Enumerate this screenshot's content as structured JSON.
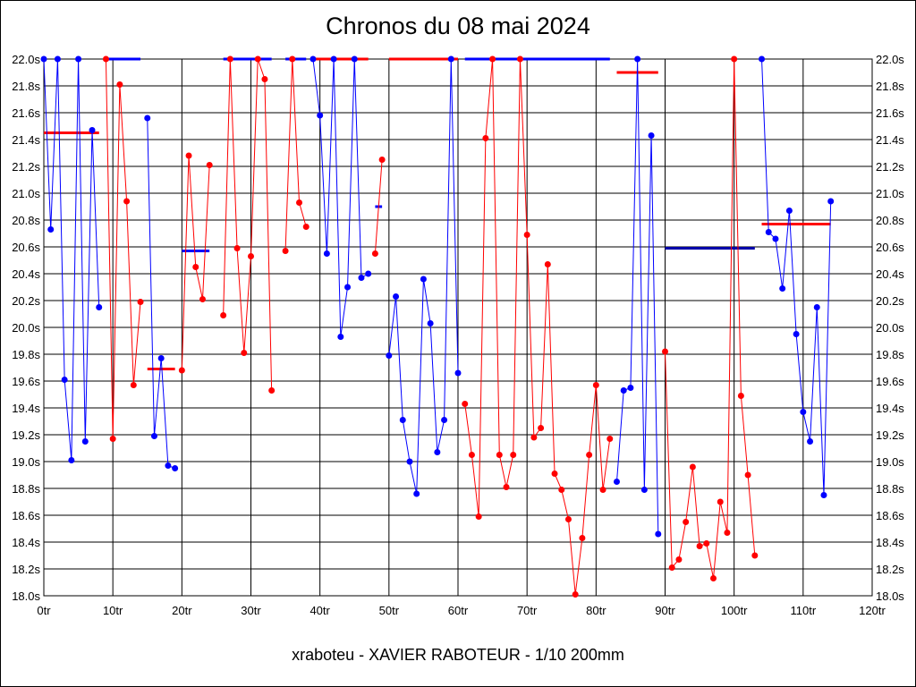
{
  "chart_data": {
    "type": "line",
    "title": "Chronos du 08 mai 2024",
    "subtitle": "xraboteu - XAVIER RABOTEUR - 1/10 200mm",
    "xlabel": "",
    "ylabel": "",
    "xlim": [
      0,
      120
    ],
    "ylim": [
      18.0,
      22.0
    ],
    "grid": true,
    "x_ticks": [
      "0tr",
      "10tr",
      "20tr",
      "30tr",
      "40tr",
      "50tr",
      "60tr",
      "70tr",
      "80tr",
      "90tr",
      "100tr",
      "110tr",
      "120tr"
    ],
    "x_tick_values": [
      0,
      10,
      20,
      30,
      40,
      50,
      60,
      70,
      80,
      90,
      100,
      110,
      120
    ],
    "y_ticks": [
      "18.0s",
      "18.2s",
      "18.4s",
      "18.6s",
      "18.8s",
      "19.0s",
      "19.2s",
      "19.4s",
      "19.6s",
      "19.8s",
      "20.0s",
      "20.2s",
      "20.4s",
      "20.6s",
      "20.8s",
      "21.0s",
      "21.2s",
      "21.4s",
      "21.6s",
      "21.8s",
      "22.0s"
    ],
    "y_tick_values": [
      18.0,
      18.2,
      18.4,
      18.6,
      18.8,
      19.0,
      19.2,
      19.4,
      19.6,
      19.8,
      20.0,
      20.2,
      20.4,
      20.6,
      20.8,
      21.0,
      21.2,
      21.4,
      21.6,
      21.8,
      22.0
    ],
    "colors": {
      "blue": "#0000ff",
      "red": "#ff0000",
      "navy": "#0000aa",
      "grid": "#000000"
    },
    "series": [
      {
        "name": "segment-1",
        "color": "blue",
        "start": 0,
        "values": [
          22.0,
          20.73,
          22.0,
          19.61,
          19.01,
          22.0,
          19.15,
          21.47,
          20.15
        ]
      },
      {
        "name": "segment-2",
        "color": "red",
        "start": 9,
        "values": [
          22.0,
          19.17,
          21.81,
          20.94,
          19.57,
          20.19
        ]
      },
      {
        "name": "segment-3",
        "color": "blue",
        "start": 15,
        "values": [
          21.56,
          19.19,
          19.77,
          18.97,
          18.95
        ]
      },
      {
        "name": "segment-4",
        "color": "red",
        "start": 20,
        "values": [
          19.68,
          21.28,
          20.45,
          20.21,
          21.21
        ]
      },
      {
        "name": "segment-5",
        "color": "red",
        "start": 26,
        "values": [
          20.09,
          22.0,
          20.59,
          19.81,
          20.53,
          22.0,
          21.85,
          19.53
        ]
      },
      {
        "name": "segment-6",
        "color": "red",
        "start": 35,
        "values": [
          20.57,
          22.0,
          20.93,
          20.75
        ]
      },
      {
        "name": "segment-7",
        "color": "blue",
        "start": 39,
        "values": [
          22.0,
          21.58,
          20.55,
          22.0,
          19.93,
          20.3,
          22.0,
          20.37,
          20.4
        ]
      },
      {
        "name": "segment-8",
        "color": "red",
        "start": 48,
        "values": [
          20.55,
          21.25
        ]
      },
      {
        "name": "segment-9",
        "color": "blue",
        "start": 50,
        "values": [
          19.79,
          20.23,
          19.31,
          19.0,
          18.76,
          20.36,
          20.03,
          19.07,
          19.31,
          22.0,
          19.66
        ]
      },
      {
        "name": "segment-10",
        "color": "red",
        "start": 61,
        "values": [
          19.43,
          19.05,
          18.59,
          21.41,
          22.0,
          19.05,
          18.81,
          19.05,
          22.0,
          20.69,
          19.18,
          19.25,
          20.47,
          18.91,
          18.79,
          18.57,
          18.01,
          18.43,
          19.05,
          19.57,
          18.79,
          19.17
        ]
      },
      {
        "name": "segment-11",
        "color": "blue",
        "start": 83,
        "values": [
          18.85,
          19.53,
          19.55,
          22.0,
          18.79,
          21.43,
          18.46
        ]
      },
      {
        "name": "segment-12",
        "color": "red",
        "start": 90,
        "values": [
          19.82,
          18.21,
          18.27,
          18.55,
          18.96,
          18.37,
          18.39,
          18.13,
          18.7,
          18.47,
          22.0,
          19.49,
          18.9,
          18.3
        ]
      },
      {
        "name": "segment-13",
        "color": "blue",
        "start": 104,
        "values": [
          22.0,
          20.71,
          20.66,
          20.29,
          20.87,
          19.95,
          19.37,
          19.15,
          20.15,
          18.75,
          20.94
        ]
      }
    ],
    "reference_lines": [
      {
        "color": "red",
        "from": 0,
        "to": 8,
        "value": 21.45
      },
      {
        "color": "blue",
        "from": 9,
        "to": 14,
        "value": 22.0
      },
      {
        "color": "red",
        "from": 15,
        "to": 19,
        "value": 19.69
      },
      {
        "color": "blue",
        "from": 20,
        "to": 24,
        "value": 20.57
      },
      {
        "color": "blue",
        "from": 26,
        "to": 33,
        "value": 22.0
      },
      {
        "color": "blue",
        "from": 35,
        "to": 38,
        "value": 22.0
      },
      {
        "color": "red",
        "from": 39,
        "to": 47,
        "value": 22.0
      },
      {
        "color": "blue",
        "from": 48,
        "to": 49,
        "value": 20.9
      },
      {
        "color": "red",
        "from": 50,
        "to": 60,
        "value": 22.0
      },
      {
        "color": "blue",
        "from": 61,
        "to": 82,
        "value": 22.0
      },
      {
        "color": "red",
        "from": 83,
        "to": 89,
        "value": 21.9
      },
      {
        "color": "navy",
        "from": 90,
        "to": 103,
        "value": 20.59
      },
      {
        "color": "red",
        "from": 104,
        "to": 114,
        "value": 20.77
      }
    ]
  }
}
